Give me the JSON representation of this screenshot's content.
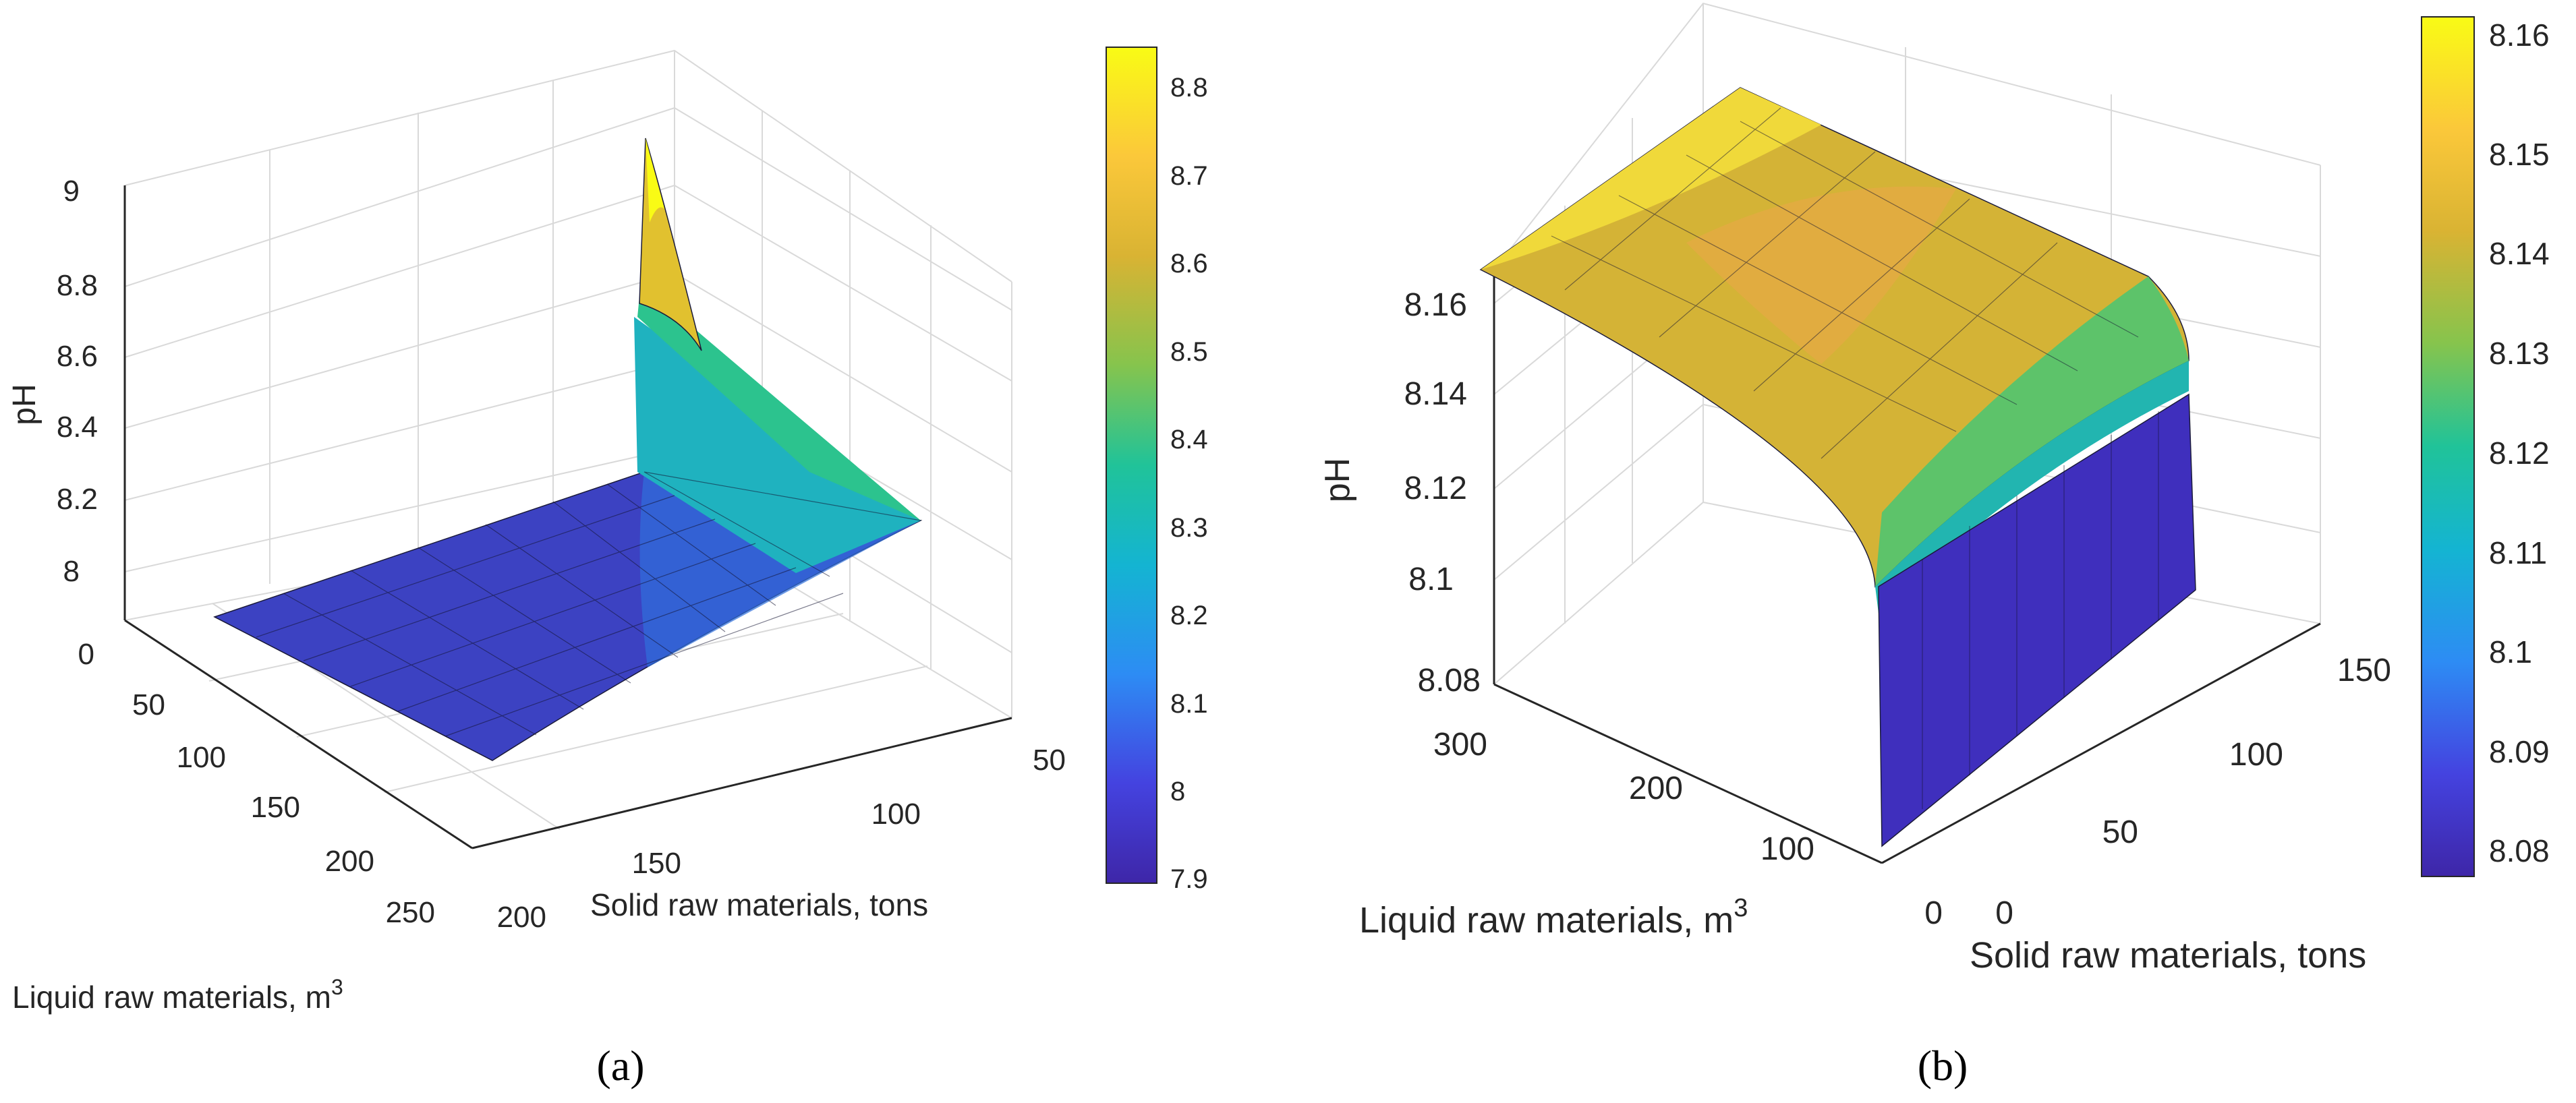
{
  "chart_data": [
    {
      "type": "surface",
      "panel_label": "(a)",
      "xlabel": "Solid raw materials, tons",
      "ylabel": "Liquid raw materials, m",
      "ylabel_sup": "3",
      "zlabel": "pH",
      "x_ticks": [
        "50",
        "100",
        "150",
        "200"
      ],
      "y_ticks": [
        "0",
        "50",
        "100",
        "150",
        "200",
        "250"
      ],
      "z_ticks": [
        "8",
        "8.2",
        "8.4",
        "8.6",
        "8.8",
        "9"
      ],
      "zlim": [
        7.9,
        9.0
      ],
      "colorbar": {
        "ticks": [
          "7.9",
          "8",
          "8.1",
          "8.2",
          "8.3",
          "8.4",
          "8.5",
          "8.6",
          "8.7",
          "8.8"
        ],
        "range": [
          7.9,
          8.84
        ]
      },
      "surface_corners": {
        "solid_40_liquid_0": 8.88,
        "solid_40_liquid_250": 8.13,
        "solid_200_liquid_0": 7.94,
        "solid_200_liquid_250": 7.92
      }
    },
    {
      "type": "surface",
      "panel_label": "(b)",
      "xlabel": "Solid raw materials, tons",
      "ylabel": "Liquid raw materials, m",
      "ylabel_sup": "3",
      "zlabel": "pH",
      "x_ticks": [
        "0",
        "50",
        "100",
        "150"
      ],
      "y_ticks": [
        "0",
        "100",
        "200",
        "300"
      ],
      "z_ticks": [
        "8.08",
        "8.1",
        "8.12",
        "8.14",
        "8.16"
      ],
      "zlim": [
        8.075,
        8.165
      ],
      "colorbar": {
        "ticks": [
          "8.08",
          "8.09",
          "8.1",
          "8.11",
          "8.12",
          "8.13",
          "8.14",
          "8.15",
          "8.16"
        ],
        "range": [
          8.08,
          8.162
        ]
      },
      "surface_corners": {
        "solid_0_liquid_0": 8.08,
        "solid_10_liquid_0": 8.104,
        "solid_170_liquid_0": 8.136,
        "solid_0_liquid_330": 8.16,
        "solid_170_liquid_330": 8.16
      }
    }
  ],
  "colormap_stops": [
    "#3e26a8",
    "#4443e0",
    "#2d8cf4",
    "#14b4d2",
    "#20c399",
    "#86c44d",
    "#d9b333",
    "#fbc83a",
    "#f9fb15"
  ]
}
